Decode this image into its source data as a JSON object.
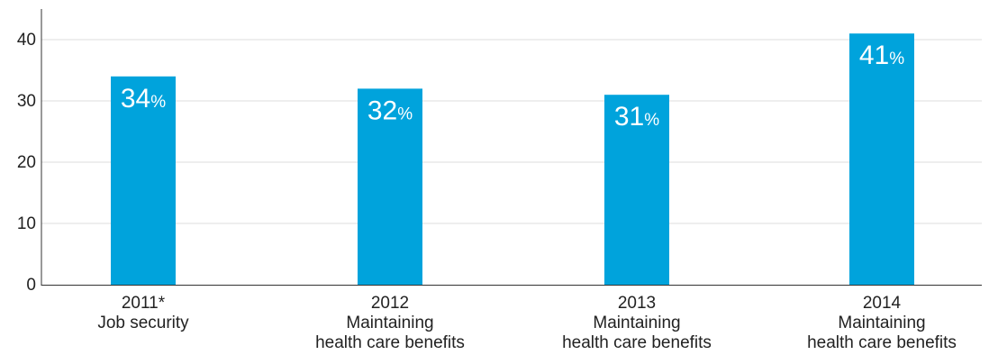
{
  "chart_data": {
    "type": "bar",
    "title": "",
    "xlabel": "",
    "ylabel": "",
    "ylim": [
      0,
      45
    ],
    "yticks": [
      0,
      10,
      20,
      30,
      40
    ],
    "grid": true,
    "categories": [
      [
        "2011*",
        "Job security"
      ],
      [
        "2012",
        "Maintaining",
        "health care benefits"
      ],
      [
        "2013",
        "Maintaining",
        "health care benefits"
      ],
      [
        "2014",
        "Maintaining",
        "health care benefits"
      ]
    ],
    "values": [
      34,
      32,
      31,
      41
    ],
    "value_labels": [
      {
        "number": "34",
        "unit": "%"
      },
      {
        "number": "32",
        "unit": "%"
      },
      {
        "number": "31",
        "unit": "%"
      },
      {
        "number": "41",
        "unit": "%"
      }
    ],
    "colors": {
      "bar": "#00a3dc",
      "gridline": "#dddddd",
      "axis": "#333333",
      "text": "#222222",
      "value_text": "#ffffff"
    }
  }
}
